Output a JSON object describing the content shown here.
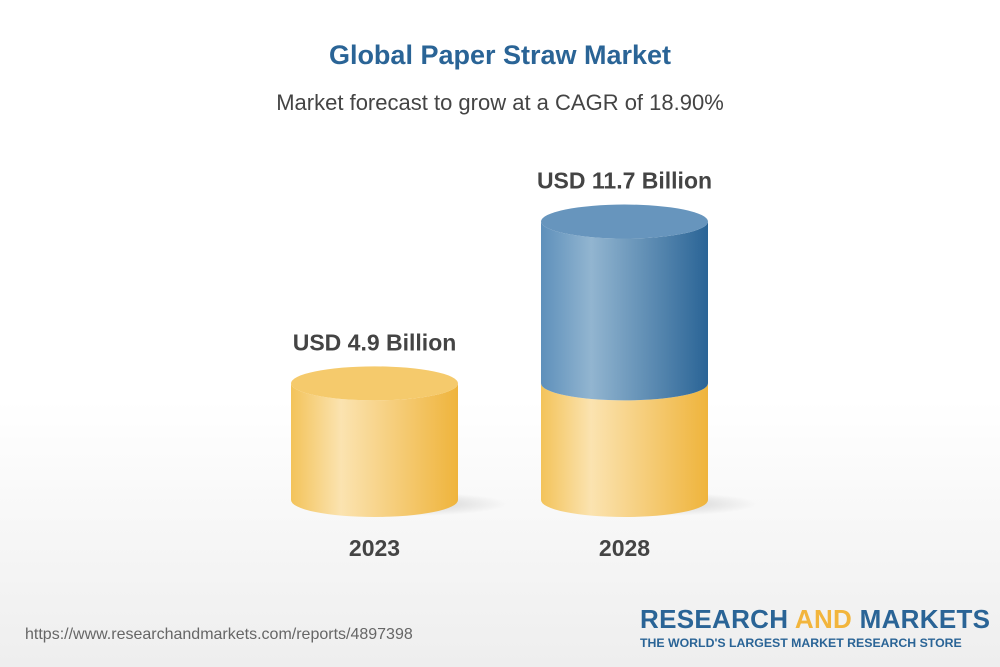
{
  "title": "Global Paper Straw Market",
  "subtitle": "Market forecast to grow at a CAGR of 18.90%",
  "chart_data": {
    "type": "bar",
    "style": "3d-cylinder",
    "categories": [
      "2023",
      "2028"
    ],
    "values": [
      4.9,
      11.7
    ],
    "data_labels": [
      "USD 4.9 Billion",
      "USD 11.7 Billion"
    ],
    "unit": "USD Billion",
    "colors": {
      "base": "#f2bd4c",
      "growth": "#2f6c9e"
    }
  },
  "footer": {
    "url": "https://www.researchandmarkets.com/reports/4897398"
  },
  "logo": {
    "word1": "RESEARCH",
    "word2": "AND",
    "word3": "MARKETS",
    "tagline": "THE WORLD'S LARGEST MARKET RESEARCH STORE"
  }
}
